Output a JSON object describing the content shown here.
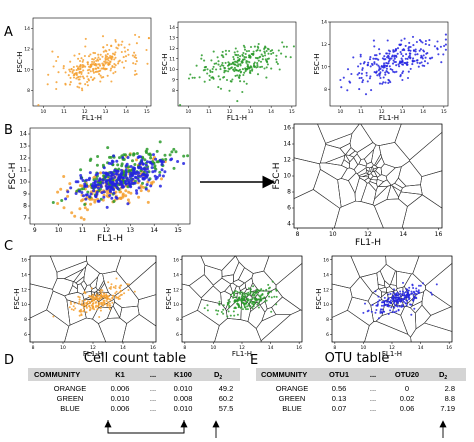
{
  "panels": {
    "A": "A",
    "B": "B",
    "C": "C",
    "D": "D",
    "E": "E"
  },
  "axes": {
    "x_label": "FL1-H",
    "y_label": "FSC-H"
  },
  "colors": {
    "orange": "#f5a030",
    "green": "#2a9a2a",
    "blue": "#2323e0",
    "table_header": "#d4d4d4"
  },
  "chart_data": [
    {
      "type": "scatter",
      "panel": "A",
      "series": [
        {
          "color": "orange"
        }
      ],
      "xlim": [
        9.5,
        15.2
      ],
      "ylim": [
        6.5,
        15
      ],
      "xticks": [
        "10",
        "11",
        "12",
        "13",
        "14",
        "15"
      ],
      "yticks": [
        "8",
        "10",
        "12",
        "14"
      ]
    },
    {
      "type": "scatter",
      "panel": "A",
      "series": [
        {
          "color": "green"
        }
      ],
      "xlim": [
        9.5,
        15.2
      ],
      "ylim": [
        6.5,
        14.5
      ],
      "xticks": [
        "10",
        "11",
        "12",
        "13",
        "14",
        "15"
      ],
      "yticks": [
        "8",
        "9",
        "10",
        "11",
        "12",
        "13",
        "14"
      ]
    },
    {
      "type": "scatter",
      "panel": "A",
      "series": [
        {
          "color": "blue"
        }
      ],
      "xlim": [
        9.5,
        15.2
      ],
      "ylim": [
        6.5,
        14
      ],
      "xticks": [
        "10",
        "11",
        "12",
        "13",
        "14",
        "15"
      ],
      "yticks": [
        "8",
        "10",
        "12",
        "14"
      ]
    },
    {
      "type": "scatter",
      "panel": "B",
      "series": [
        {
          "color": "orange"
        },
        {
          "color": "green"
        },
        {
          "color": "blue"
        }
      ],
      "xlim": [
        8.8,
        15.5
      ],
      "ylim": [
        6.5,
        14.5
      ],
      "xticks": [
        "9",
        "10",
        "11",
        "12",
        "13",
        "14",
        "15"
      ],
      "yticks": [
        "7",
        "8",
        "9",
        "10",
        "11",
        "12",
        "13",
        "14"
      ]
    },
    {
      "type": "voronoi",
      "panel": "B",
      "xlim": [
        7.8,
        16.2
      ],
      "ylim": [
        3.5,
        16.5
      ],
      "xticks": [
        "8",
        "10",
        "12",
        "14",
        "16"
      ],
      "yticks": [
        "4",
        "6",
        "8",
        "10",
        "12",
        "14",
        "16"
      ]
    }
  ],
  "cell_count_table": {
    "title": "Cell count table",
    "headers": [
      "COMMUNITY",
      "K1",
      "...",
      "K100",
      "D2"
    ],
    "rows": [
      [
        "ORANGE",
        "0.006",
        "...",
        "0.010",
        "49.2"
      ],
      [
        "GREEN",
        "0.010",
        "...",
        "0.008",
        "60.2"
      ],
      [
        "BLUE",
        "0.006",
        "...",
        "0.010",
        "57.5"
      ]
    ]
  },
  "otu_table": {
    "title": "OTU table",
    "headers": [
      "COMMUNITY",
      "OTU1",
      "...",
      "OTU20",
      "D2"
    ],
    "rows": [
      [
        "ORANGE",
        "0.56",
        "...",
        "0",
        "2.8"
      ],
      [
        "GREEN",
        "0.13",
        "...",
        "0.02",
        "8.8"
      ],
      [
        "BLUE",
        "0.07",
        "...",
        "0.06",
        "7.19"
      ]
    ]
  }
}
